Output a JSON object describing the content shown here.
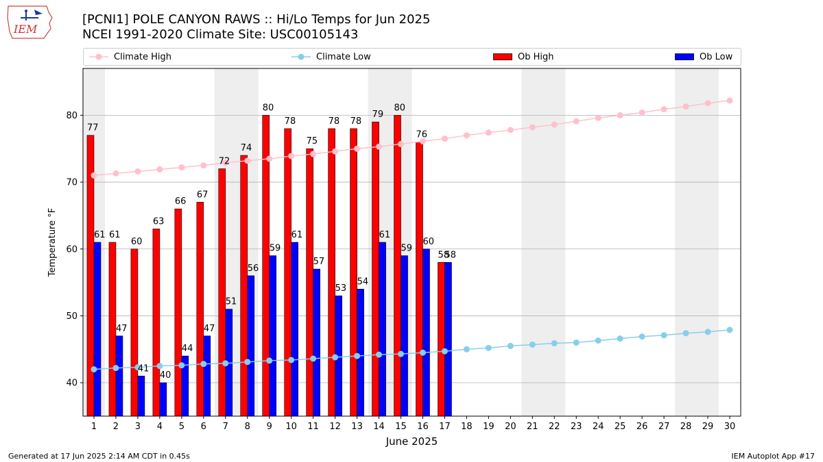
{
  "header": {
    "title_line1": "[PCNI1] POLE CANYON RAWS :: Hi/Lo Temps for Jun 2025",
    "title_line2": "NCEI 1991-2020 Climate Site: USC00105143",
    "logo_text": "IEM"
  },
  "legend": {
    "climate_high": "Climate High",
    "climate_low": "Climate Low",
    "ob_high": "Ob High",
    "ob_low": "Ob Low"
  },
  "footer": {
    "generated": "Generated at 17 Jun 2025 2:14 AM CDT in 0.45s",
    "app": "IEM Autoplot App #17"
  },
  "colors": {
    "ob_high": "#ff0000",
    "ob_low": "#0000ff",
    "climate_high": "#ffc0cb",
    "climate_low": "#87ceeb",
    "weekend_shade": "#eeeeee",
    "grid": "#b0b0b0"
  },
  "chart_data": {
    "type": "bar",
    "xlabel": "June 2025",
    "ylabel": "Temperature °F",
    "xlim": [
      0.5,
      30.5
    ],
    "ylim": [
      35,
      87
    ],
    "yticks": [
      40,
      50,
      60,
      70,
      80
    ],
    "grid": "horizontal",
    "legend_placement": "top",
    "weekend_shading": [
      [
        0.5,
        1.5
      ],
      [
        6.5,
        8.5
      ],
      [
        13.5,
        15.5
      ],
      [
        20.5,
        22.5
      ],
      [
        27.5,
        29.5
      ]
    ],
    "days": [
      1,
      2,
      3,
      4,
      5,
      6,
      7,
      8,
      9,
      10,
      11,
      12,
      13,
      14,
      15,
      16,
      17,
      18,
      19,
      20,
      21,
      22,
      23,
      24,
      25,
      26,
      27,
      28,
      29,
      30
    ],
    "ob_high": [
      77,
      61,
      60,
      63,
      66,
      67,
      72,
      74,
      80,
      78,
      75,
      78,
      78,
      79,
      80,
      76,
      58
    ],
    "ob_low": [
      61,
      47,
      41,
      40,
      44,
      47,
      51,
      56,
      59,
      61,
      57,
      53,
      54,
      61,
      59,
      60,
      58
    ],
    "climate_high": [
      71.0,
      71.3,
      71.6,
      71.9,
      72.2,
      72.5,
      72.9,
      73.2,
      73.5,
      73.9,
      74.2,
      74.6,
      75.0,
      75.3,
      75.7,
      76.1,
      76.5,
      77.0,
      77.4,
      77.8,
      78.2,
      78.6,
      79.1,
      79.6,
      80.0,
      80.4,
      80.9,
      81.3,
      81.8,
      82.2
    ],
    "climate_low": [
      42.0,
      42.2,
      42.3,
      42.5,
      42.6,
      42.8,
      42.9,
      43.1,
      43.3,
      43.4,
      43.6,
      43.8,
      44.0,
      44.2,
      44.3,
      44.5,
      44.7,
      45.0,
      45.2,
      45.5,
      45.7,
      45.9,
      46.0,
      46.3,
      46.6,
      46.9,
      47.1,
      47.4,
      47.6,
      47.9
    ],
    "series": [
      {
        "name": "Ob High"
      },
      {
        "name": "Ob Low"
      },
      {
        "name": "Climate High"
      },
      {
        "name": "Climate Low"
      }
    ]
  }
}
